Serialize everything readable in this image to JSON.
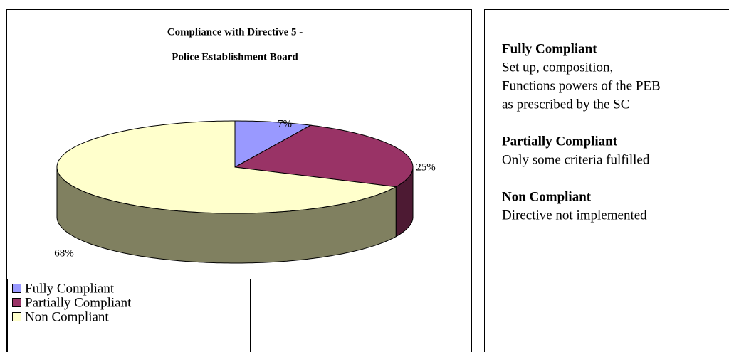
{
  "chart_data": {
    "type": "pie",
    "title": [
      "Compliance with Directive 5 -",
      "Police Establishment Board"
    ],
    "categories": [
      "Fully Compliant",
      "Partially Compliant",
      "Non Compliant"
    ],
    "values": [
      7,
      25,
      68
    ],
    "value_labels": [
      "7%",
      "25%",
      "68%"
    ],
    "colors": [
      "#9999ff",
      "#993366",
      "#ffffcc"
    ],
    "side_colors": [
      "#5c5c99",
      "#4d1a33",
      "#808060"
    ],
    "legend": "bottom-left"
  },
  "notes": [
    {
      "term": "Fully Compliant",
      "text": [
        "Set up, composition,",
        "Functions powers of the PEB",
        "as prescribed by the SC"
      ]
    },
    {
      "term": "Partially Compliant",
      "text": [
        "Only some criteria fulfilled"
      ]
    },
    {
      "term": "Non Compliant",
      "text": [
        "Directive not implemented"
      ]
    }
  ]
}
